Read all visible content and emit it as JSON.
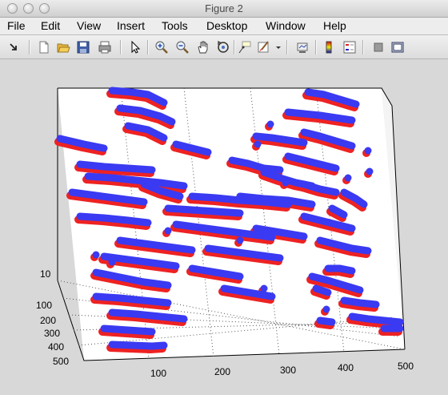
{
  "window": {
    "title": "Figure 2"
  },
  "menu": [
    "File",
    "Edit",
    "View",
    "Insert",
    "Tools",
    "Desktop",
    "Window",
    "Help"
  ],
  "toolbar": {
    "icons": [
      "arrow-return-icon",
      "new-figure-icon",
      "open-file-icon",
      "save-icon",
      "print-icon",
      "edit-plot-pointer-icon",
      "zoom-in-icon",
      "zoom-out-icon",
      "pan-hand-icon",
      "rotate-3d-icon",
      "data-cursor-icon",
      "brush-icon",
      "brush-dropdown-icon",
      "link-plot-icon",
      "insert-colorbar-icon",
      "insert-legend-icon",
      "hide-plot-tools-icon",
      "show-plot-tools-icon"
    ]
  },
  "plot": {
    "colors": {
      "front": "#3a3af2",
      "shadow": "#ee2222"
    },
    "chart_data": {
      "type": "scatter",
      "z_tick": "10",
      "y_ticks": [
        "100",
        "200",
        "300",
        "400",
        "500"
      ],
      "x_ticks": [
        "100",
        "200",
        "300",
        "400",
        "500"
      ]
    }
  }
}
